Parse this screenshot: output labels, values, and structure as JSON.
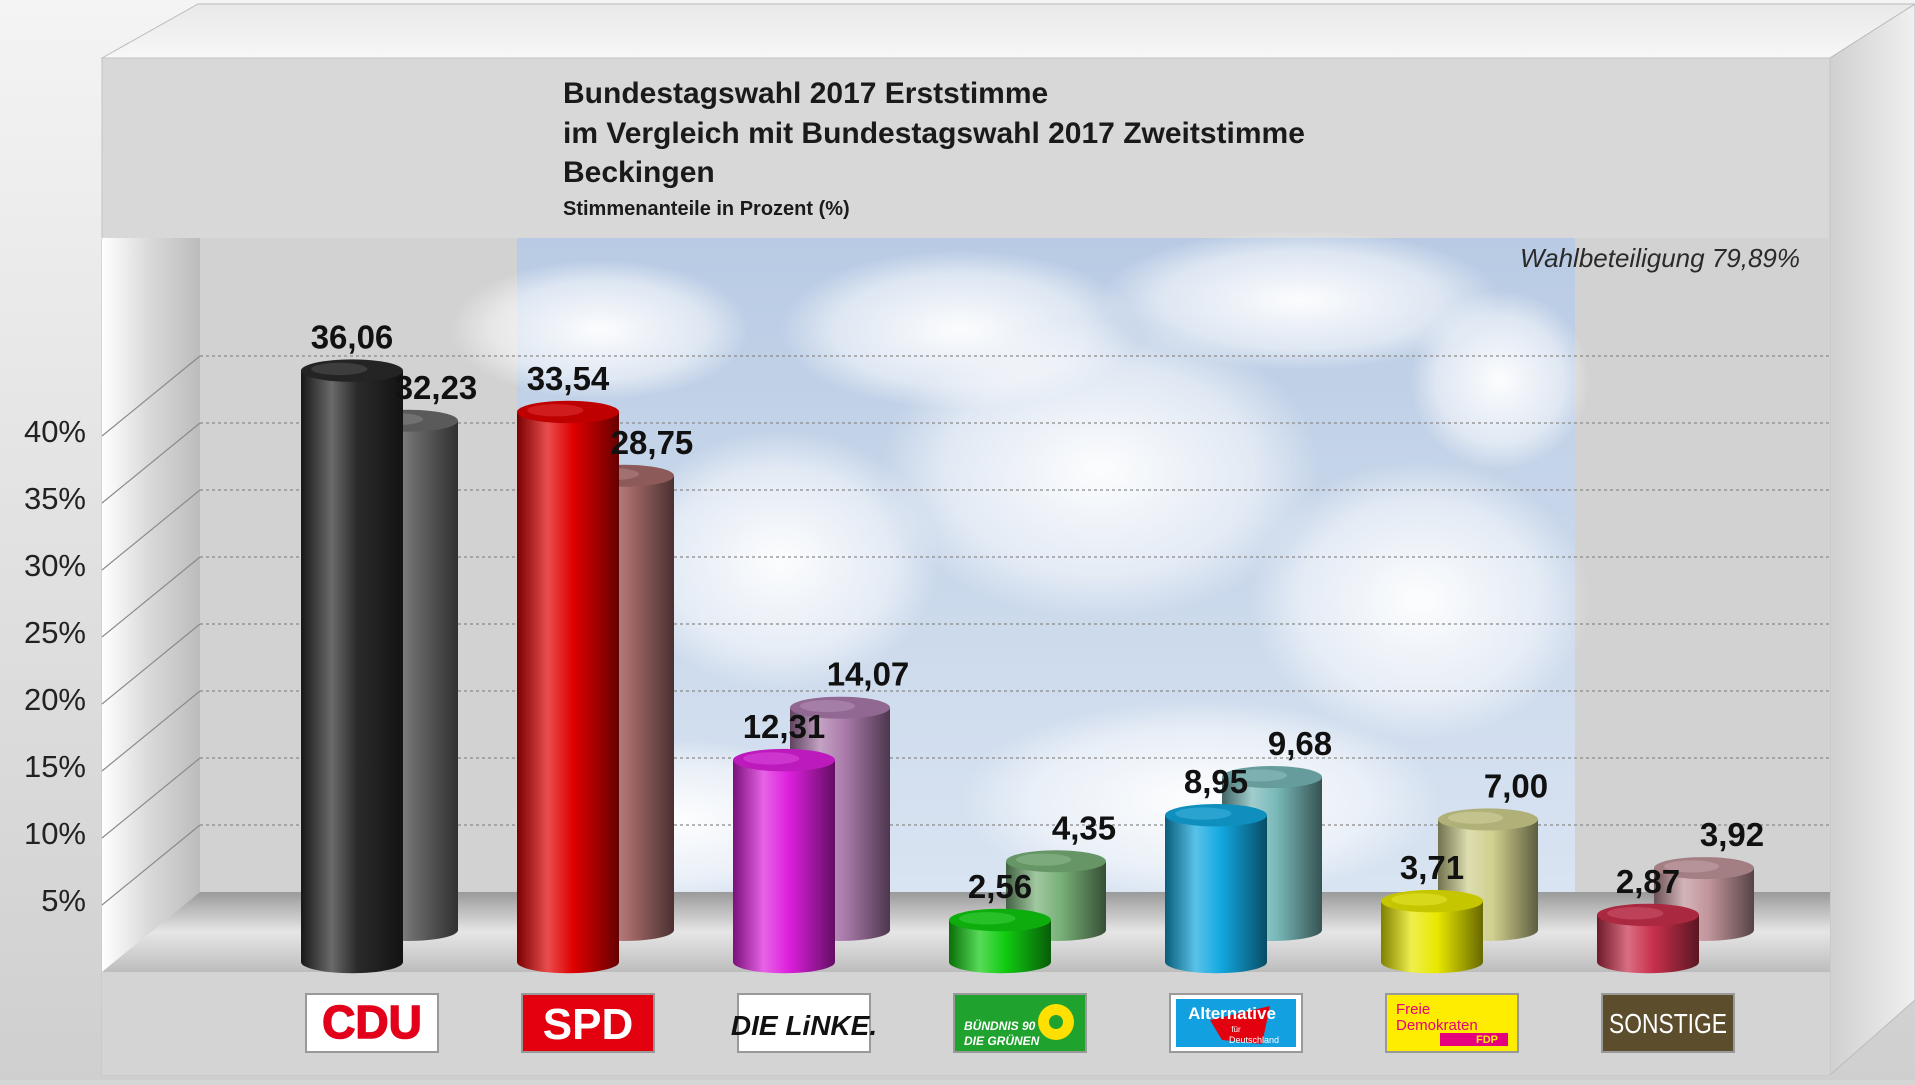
{
  "title_lines": [
    "Bundestagswahl 2017 Erststimme",
    "im Vergleich mit Bundestagswahl 2017 Zweitstimme",
    "Beckingen"
  ],
  "subtitle": "Stimmenanteile in Prozent (%)",
  "annotation": "Wahlbeteiligung 79,89%",
  "chart_data": {
    "type": "bar",
    "title": "Bundestagswahl 2017 Erststimme im Vergleich mit Bundestagswahl 2017 Zweitstimme Beckingen",
    "subtitle": "Stimmenanteile in Prozent (%)",
    "categories": [
      "CDU",
      "SPD",
      "DIE LINKE.",
      "BÜNDNIS 90 DIE GRÜNEN",
      "Alternative für Deutschland",
      "Freie Demokraten FDP",
      "SONSTIGE"
    ],
    "series": [
      {
        "values": [
          36.06,
          33.54,
          12.31,
          2.56,
          8.95,
          3.71,
          2.87
        ],
        "labels": [
          "36,06",
          "33,54",
          "12,31",
          "2,56",
          "8,95",
          "3,71",
          "2,87"
        ]
      },
      {
        "values": [
          32.23,
          28.75,
          14.07,
          4.35,
          9.68,
          7.0,
          3.92
        ],
        "labels": [
          "32,23",
          "28,75",
          "14,07",
          "4,35",
          "9,68",
          "7,00",
          "3,92"
        ]
      }
    ],
    "bar_colors": {
      "front": [
        "#2a2a2a",
        "#e00000",
        "#dd1fdd",
        "#11cc11",
        "#12a8e0",
        "#e8e800",
        "#c8304c"
      ],
      "back": [
        "#6a6a6a",
        "#a66a6a",
        "#aa7aaa",
        "#78b078",
        "#78b8b8",
        "#cfcf8e",
        "#c0949a"
      ]
    },
    "y_ticks": [
      "5%",
      "10%",
      "15%",
      "20%",
      "25%",
      "30%",
      "35%",
      "40%"
    ],
    "ylim": [
      0,
      45
    ],
    "grid": true,
    "legend": "none"
  },
  "logos": {
    "cdu": "CDU",
    "spd": "SPD",
    "linke": "DIE LiNKE.",
    "gruene": [
      "BÜNDNIS 90",
      "DIE GRÜNEN"
    ],
    "afd": [
      "Alternative",
      "für",
      "Deutschland"
    ],
    "fdp": [
      "Freie",
      "Demokraten",
      "FDP"
    ],
    "sonstige": "SONSTIGE"
  }
}
